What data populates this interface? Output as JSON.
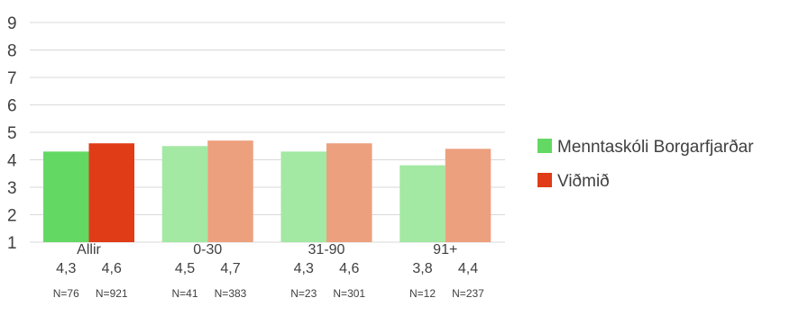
{
  "chart_data": {
    "type": "bar",
    "categories": [
      "Allir",
      "0-30",
      "31-90",
      "91+"
    ],
    "series": [
      {
        "name": "Menntaskóli Borgarfjarðar",
        "values": [
          4.3,
          4.5,
          4.3,
          3.8
        ],
        "value_labels": [
          "4,3",
          "4,5",
          "4,3",
          "3,8"
        ],
        "n_labels": [
          "N=76",
          "N=41",
          "N=23",
          "N=12"
        ],
        "color": "#63d963",
        "faded_color": "#a3e8a3"
      },
      {
        "name": "Viðmið",
        "values": [
          4.6,
          4.7,
          4.6,
          4.4
        ],
        "value_labels": [
          "4,6",
          "4,7",
          "4,6",
          "4,4"
        ],
        "n_labels": [
          "N=921",
          "N=383",
          "N=301",
          "N=237"
        ],
        "color": "#e03c17",
        "faded_color": "#eda07e"
      }
    ],
    "highlighted_category": "Allir",
    "ylim": [
      1,
      9
    ],
    "yticks": [
      "1",
      "2",
      "3",
      "4",
      "5",
      "6",
      "7",
      "8",
      "9"
    ],
    "grid": true,
    "legend_position": "right"
  }
}
